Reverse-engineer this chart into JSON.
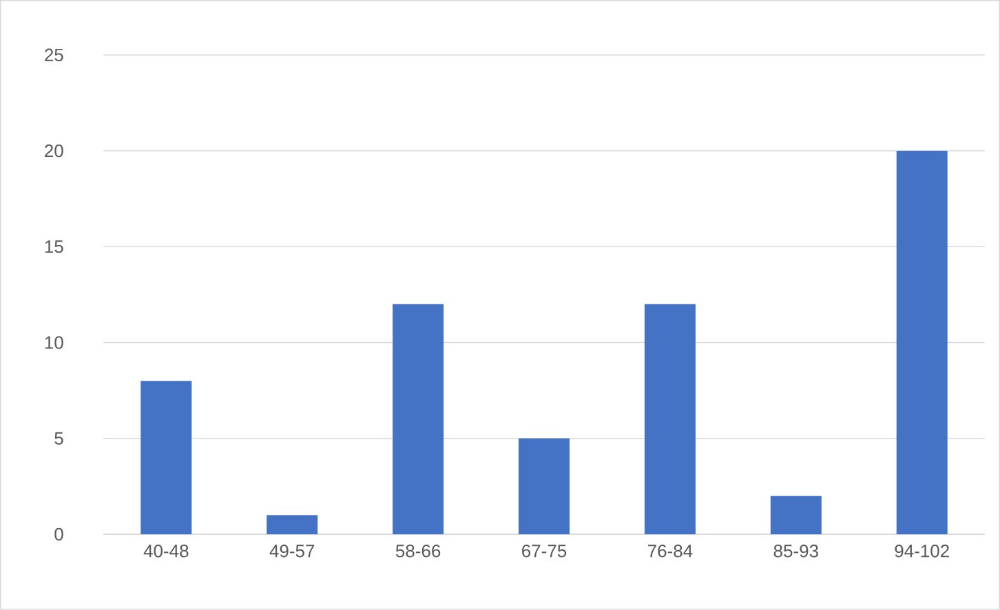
{
  "chart_data": {
    "type": "bar",
    "categories": [
      "40-48",
      "49-57",
      "58-66",
      "67-75",
      "76-84",
      "85-93",
      "94-102"
    ],
    "values": [
      8,
      1,
      12,
      5,
      12,
      2,
      20
    ],
    "color": "#4472c4",
    "ylim": [
      0,
      25
    ],
    "yticks": [
      0,
      5,
      10,
      15,
      20,
      25
    ],
    "grid": "y"
  }
}
